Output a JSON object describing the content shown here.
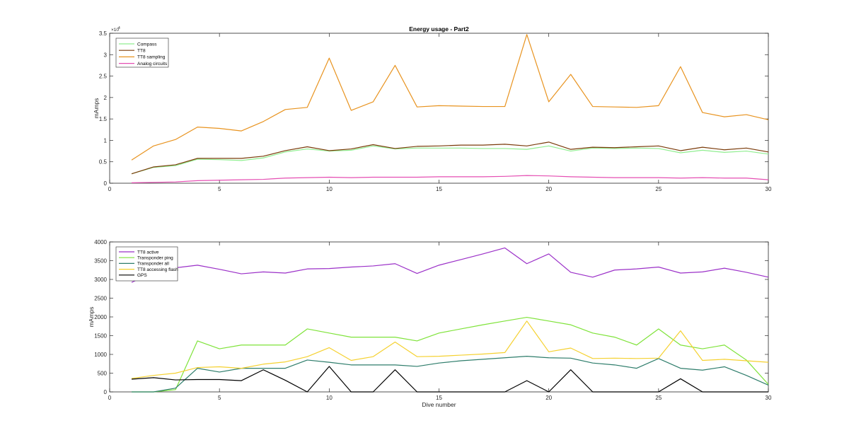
{
  "chart_data": [
    {
      "type": "line",
      "title": "Energy usage - Part2",
      "xlabel": "",
      "ylabel": "mAmps",
      "xlim": [
        0,
        30
      ],
      "ylim": [
        0,
        35000
      ],
      "y_exponent_label": "×10",
      "y_exponent_value": "4",
      "xticks": [
        0,
        5,
        10,
        15,
        20,
        25,
        30
      ],
      "yticks": [
        0,
        5000,
        10000,
        15000,
        20000,
        25000,
        30000,
        35000
      ],
      "ytick_labels": [
        "0",
        "0.5",
        "1",
        "1.5",
        "2",
        "2.5",
        "3",
        "3.5"
      ],
      "grid": false,
      "legend_position": "top-left",
      "x": [
        1,
        2,
        3,
        4,
        5,
        6,
        7,
        8,
        9,
        10,
        11,
        12,
        13,
        14,
        15,
        16,
        17,
        18,
        19,
        20,
        21,
        22,
        23,
        24,
        25,
        26,
        27,
        28,
        29,
        30
      ],
      "series": [
        {
          "name": "Compass",
          "color": "#90ee90",
          "values": [
            2200,
            3700,
            4100,
            5600,
            5500,
            5300,
            5900,
            7300,
            8000,
            7500,
            7700,
            8700,
            8000,
            8200,
            8200,
            8200,
            8100,
            8100,
            7900,
            8700,
            7500,
            8200,
            8100,
            8200,
            8100,
            7100,
            7700,
            7200,
            7500,
            6800
          ]
        },
        {
          "name": "TT8",
          "color": "#7a3b0a",
          "values": [
            2200,
            3800,
            4300,
            5800,
            5800,
            5800,
            6300,
            7600,
            8500,
            7600,
            8000,
            9000,
            8100,
            8600,
            8700,
            8900,
            8900,
            9100,
            8700,
            9600,
            7900,
            8400,
            8300,
            8500,
            8700,
            7600,
            8400,
            7800,
            8200,
            7300
          ]
        },
        {
          "name": "TT8 sampling",
          "color": "#e8931f",
          "values": [
            5400,
            8700,
            10200,
            13100,
            12800,
            12200,
            14400,
            17200,
            17700,
            29200,
            17000,
            19000,
            27500,
            17800,
            18100,
            18000,
            17900,
            17900,
            34700,
            19000,
            25400,
            17900,
            17800,
            17700,
            18100,
            27200,
            16500,
            15500,
            16000,
            14800
          ]
        },
        {
          "name": "Analog circuits",
          "color": "#e54fb3",
          "values": [
            100,
            200,
            300,
            600,
            700,
            800,
            900,
            1200,
            1300,
            1400,
            1300,
            1400,
            1400,
            1400,
            1500,
            1500,
            1500,
            1600,
            1800,
            1700,
            1500,
            1400,
            1300,
            1300,
            1300,
            1200,
            1300,
            1200,
            1200,
            800
          ]
        }
      ]
    },
    {
      "type": "line",
      "title": "",
      "xlabel": "Dive number",
      "ylabel": "mAmps",
      "xlim": [
        0,
        30
      ],
      "ylim": [
        0,
        4000
      ],
      "xticks": [
        0,
        5,
        10,
        15,
        20,
        25,
        30
      ],
      "yticks": [
        0,
        500,
        1000,
        1500,
        2000,
        2500,
        3000,
        3500,
        4000
      ],
      "ytick_labels": [
        "0",
        "500",
        "1000",
        "1500",
        "2000",
        "2500",
        "3000",
        "3500",
        "4000"
      ],
      "grid": false,
      "legend_position": "top-left",
      "x": [
        1,
        2,
        3,
        4,
        5,
        6,
        7,
        8,
        9,
        10,
        11,
        12,
        13,
        14,
        15,
        16,
        17,
        18,
        19,
        20,
        21,
        22,
        23,
        24,
        25,
        26,
        27,
        28,
        29,
        30
      ],
      "series": [
        {
          "name": "TT8 active",
          "color": "#9b30c8",
          "values": [
            2920,
            3200,
            3310,
            3380,
            3270,
            3150,
            3200,
            3170,
            3280,
            3290,
            3330,
            3360,
            3420,
            3160,
            3380,
            3530,
            3680,
            3840,
            3420,
            3680,
            3190,
            3060,
            3250,
            3280,
            3330,
            3170,
            3200,
            3300,
            3190,
            3060
          ]
        },
        {
          "name": "Transponder ping",
          "color": "#7fe33a",
          "values": [
            0,
            0,
            60,
            1360,
            1150,
            1250,
            1250,
            1250,
            1680,
            1570,
            1460,
            1460,
            1460,
            1360,
            1570,
            1680,
            1790,
            1890,
            1990,
            1890,
            1790,
            1570,
            1460,
            1250,
            1680,
            1250,
            1150,
            1250,
            850,
            200
          ]
        },
        {
          "name": "Transponder all",
          "color": "#2e7d6b",
          "values": [
            0,
            0,
            100,
            630,
            530,
            630,
            630,
            630,
            850,
            790,
            720,
            720,
            720,
            680,
            770,
            830,
            870,
            910,
            950,
            910,
            900,
            770,
            720,
            630,
            890,
            630,
            580,
            670,
            440,
            180
          ]
        },
        {
          "name": "TT8 accessing flash",
          "color": "#f5d130",
          "values": [
            360,
            440,
            500,
            650,
            670,
            630,
            740,
            800,
            940,
            1180,
            840,
            940,
            1330,
            940,
            950,
            980,
            1010,
            1050,
            1890,
            1070,
            1170,
            890,
            900,
            890,
            900,
            1630,
            840,
            870,
            830,
            790
          ]
        },
        {
          "name": "GPS",
          "color": "#000000",
          "values": [
            340,
            380,
            320,
            330,
            330,
            300,
            590,
            310,
            0,
            680,
            0,
            0,
            590,
            0,
            0,
            0,
            0,
            0,
            300,
            0,
            590,
            0,
            0,
            0,
            0,
            350,
            0,
            0,
            0,
            0
          ]
        }
      ]
    }
  ]
}
